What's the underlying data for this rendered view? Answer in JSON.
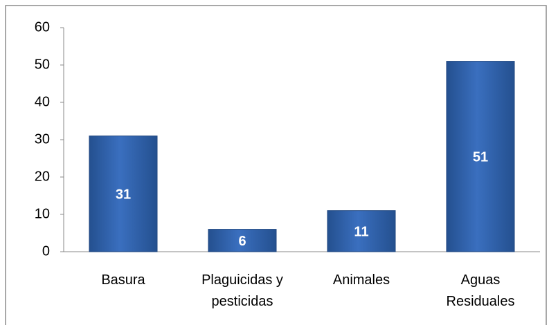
{
  "chart_data": {
    "type": "bar",
    "categories": [
      "Basura",
      "Plaguicidas y\npesticidas",
      "Animales",
      "Aguas\nResiduales"
    ],
    "values": [
      31,
      6,
      11,
      51
    ],
    "color": "#3a6fbf",
    "ylim": [
      0,
      60
    ],
    "yticks": [
      0,
      10,
      20,
      30,
      40,
      50,
      60
    ],
    "grid": false
  }
}
